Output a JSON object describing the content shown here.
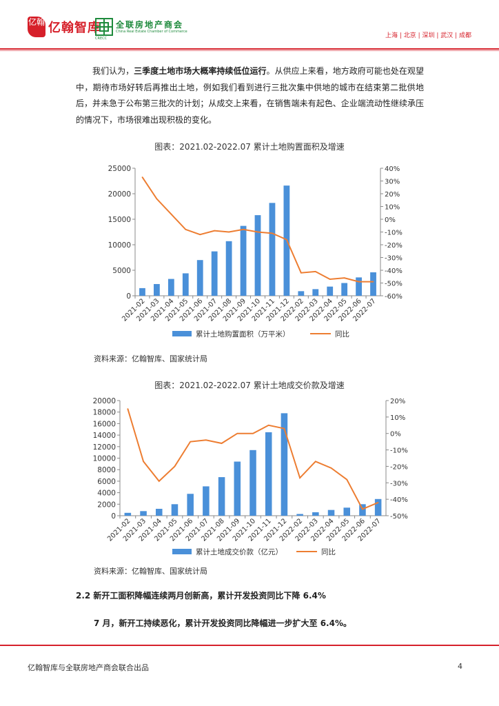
{
  "header": {
    "brand1_mark": "亿翰",
    "brand1_name": "亿翰智库",
    "brand2_name_cn": "全联房地产商会",
    "brand2_name_en": "China Real Estate Chamber of Commerce",
    "brand2_abbr": "CRECC",
    "cities": "上海 | 北京 | 深圳 | 武汉 | 成都",
    "brand1_color": "#d6202a",
    "brand2_color": "#1e8a3c"
  },
  "body": {
    "para_start": "我们认为，",
    "para_bold": "三季度土地市场大概率持续低位运行",
    "para_rest": "。从供应上来看，地方政府可能也处在观望中，期待市场好转后再推出土地，例如我们看到进行三批次集中供地的城市在结束第二批供地后，并未急于公布第三批次的计划；从成交上来看，在销售端未有起色、企业端流动性继续承压的情况下，市场很难出现积极的变化。",
    "section_heading": "2.2 新开工面积降幅连续两月创新高，累计开发投资同比下降 6.4%",
    "lead_sentence": "7 月，新开工持续恶化，累计开发投资同比降幅进一步扩大至 6.4%。"
  },
  "chart_data": [
    {
      "type": "bar",
      "title": "图表：2021.02-2022.07 累计土地购置面积及增速",
      "categories": [
        "2021-02",
        "2021-03",
        "2021-04",
        "2021-05",
        "2021-06",
        "2021-07",
        "2021-08",
        "2021-09",
        "2021-10",
        "2021-11",
        "2021-12",
        "2022-02",
        "2022-03",
        "2022-04",
        "2022-05",
        "2022-06",
        "2022-07"
      ],
      "series": [
        {
          "name": "累计土地购置面积（万平米）",
          "type": "bar",
          "axis": "left",
          "values": [
            1500,
            2300,
            3300,
            4400,
            7000,
            8700,
            10700,
            13700,
            15800,
            18200,
            21600,
            900,
            1300,
            1800,
            2500,
            3600,
            4600
          ]
        },
        {
          "name": "同比",
          "type": "line",
          "axis": "right",
          "values": [
            33,
            16,
            4,
            -8,
            -12,
            -9,
            -10,
            -8,
            -10,
            -11,
            -16,
            -42,
            -41,
            -47,
            -46,
            -49,
            -49
          ]
        }
      ],
      "ylim_left": [
        0,
        25000
      ],
      "yticks_left": [
        "0",
        "5000",
        "10000",
        "15000",
        "20000",
        "25000"
      ],
      "ylim_right": [
        -60,
        40
      ],
      "yticks_right": [
        "-60%",
        "-50%",
        "-40%",
        "-30%",
        "-20%",
        "-10%",
        "0%",
        "10%",
        "20%",
        "30%",
        "40%"
      ],
      "legend": "bottom",
      "grid": false,
      "colors": {
        "bar": "#4a90d9",
        "line": "#ed7d31"
      }
    },
    {
      "type": "bar",
      "title": "图表：2021.02-2022.07 累计土地成交价款及增速",
      "categories": [
        "2021-02",
        "2021-03",
        "2021-04",
        "2021-05",
        "2021-06",
        "2021-07",
        "2021-08",
        "2021-09",
        "2021-10",
        "2021-11",
        "2021-12",
        "2022-02",
        "2022-03",
        "2022-04",
        "2022-05",
        "2022-06",
        "2022-07"
      ],
      "series": [
        {
          "name": "累计土地成交价款（亿元）",
          "type": "bar",
          "axis": "left",
          "values": [
            500,
            800,
            1200,
            2000,
            3800,
            5100,
            6700,
            9400,
            11400,
            14500,
            17800,
            300,
            600,
            1000,
            1400,
            2000,
            2900
          ]
        },
        {
          "name": "同比",
          "type": "line",
          "axis": "right",
          "values": [
            15,
            -17,
            -29,
            -20,
            -5,
            -4,
            -6,
            0,
            0,
            5,
            3,
            -27,
            -17,
            -21,
            -28,
            -46,
            -42
          ]
        }
      ],
      "ylim_left": [
        0,
        20000
      ],
      "yticks_left": [
        "0",
        "2000",
        "4000",
        "6000",
        "8000",
        "10000",
        "12000",
        "14000",
        "16000",
        "18000",
        "20000"
      ],
      "ylim_right": [
        -50,
        20
      ],
      "yticks_right": [
        "-50%",
        "-40%",
        "-30%",
        "-20%",
        "-10%",
        "0%",
        "10%",
        "20%"
      ],
      "legend": "bottom",
      "grid": false,
      "colors": {
        "bar": "#4a90d9",
        "line": "#ed7d31"
      }
    }
  ],
  "sources": [
    "资料来源：亿翰智库、国家统计局",
    "资料来源：亿翰智库、国家统计局"
  ],
  "footer": {
    "left": "亿翰智库与全联房地产商会联合出品",
    "page": "4"
  }
}
